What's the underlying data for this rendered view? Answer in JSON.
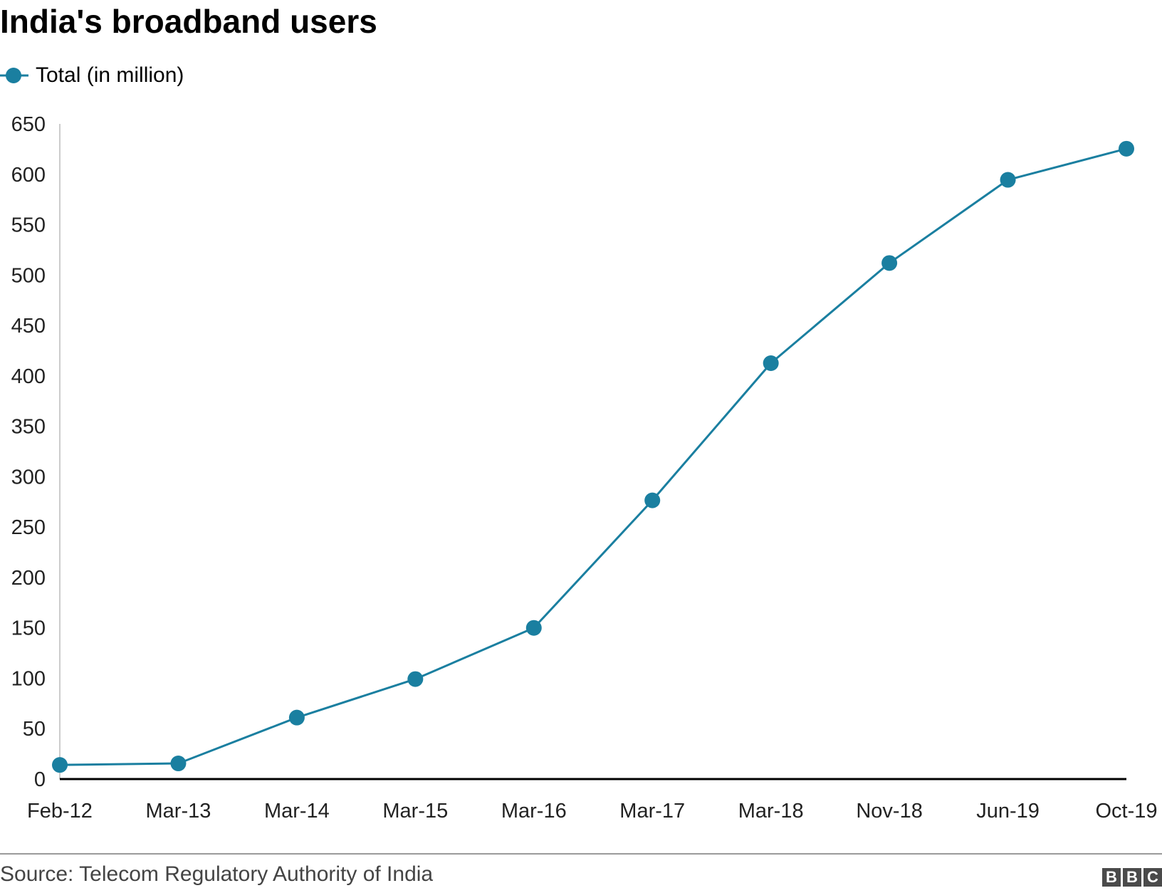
{
  "header": {
    "title": "India's broadband users"
  },
  "legend": {
    "label": "Total (in million)"
  },
  "footer": {
    "source": "Source: Telecom Regulatory Authority of India",
    "logo_letters": [
      "B",
      "B",
      "C"
    ]
  },
  "colors": {
    "series": "#1a7fa0",
    "axis": "#000000",
    "grid_axis": "#cccccc"
  },
  "chart_data": {
    "type": "line",
    "title": "India's broadband users",
    "xlabel": "",
    "ylabel": "",
    "categories": [
      "Feb-12",
      "Mar-13",
      "Mar-14",
      "Mar-15",
      "Mar-16",
      "Mar-17",
      "Mar-18",
      "Nov-18",
      "Jun-19",
      "Oct-19"
    ],
    "series": [
      {
        "name": "Total (in million)",
        "values": [
          14,
          15.5,
          61,
          99.2,
          150,
          276.5,
          412.6,
          512,
          594.5,
          625.4
        ]
      }
    ],
    "ylim": [
      0,
      650
    ],
    "yticks": [
      0,
      50,
      100,
      150,
      200,
      250,
      300,
      350,
      400,
      450,
      500,
      550,
      600,
      650
    ],
    "grid": false,
    "legend_position": "top-left",
    "markers": true
  }
}
